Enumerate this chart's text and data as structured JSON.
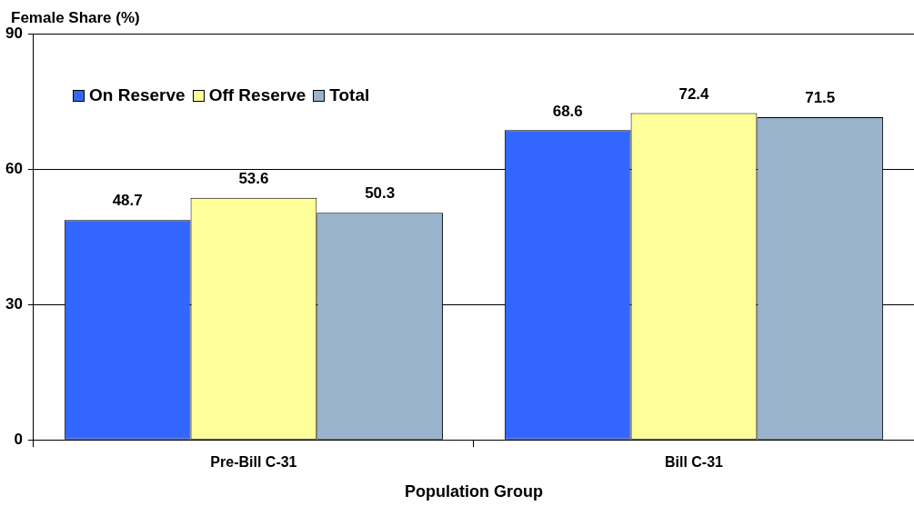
{
  "chart_data": {
    "type": "bar",
    "ylabel": "Female Share (%)",
    "xlabel": "Population Group",
    "categories": [
      "Pre-Bill C-31",
      "Bill C-31"
    ],
    "series": [
      {
        "name": "On Reserve",
        "color": "#3366ff",
        "values": [
          48.7,
          68.6
        ]
      },
      {
        "name": "Off Reserve",
        "color": "#ffff99",
        "values": [
          53.6,
          72.4
        ]
      },
      {
        "name": "Total",
        "color": "#99b3cc",
        "values": [
          50.3,
          71.5
        ]
      }
    ],
    "ylim": [
      0,
      90
    ],
    "yticks": [
      0,
      30,
      60,
      90
    ],
    "grid": "y",
    "legend": "top left",
    "data_labels": true
  }
}
